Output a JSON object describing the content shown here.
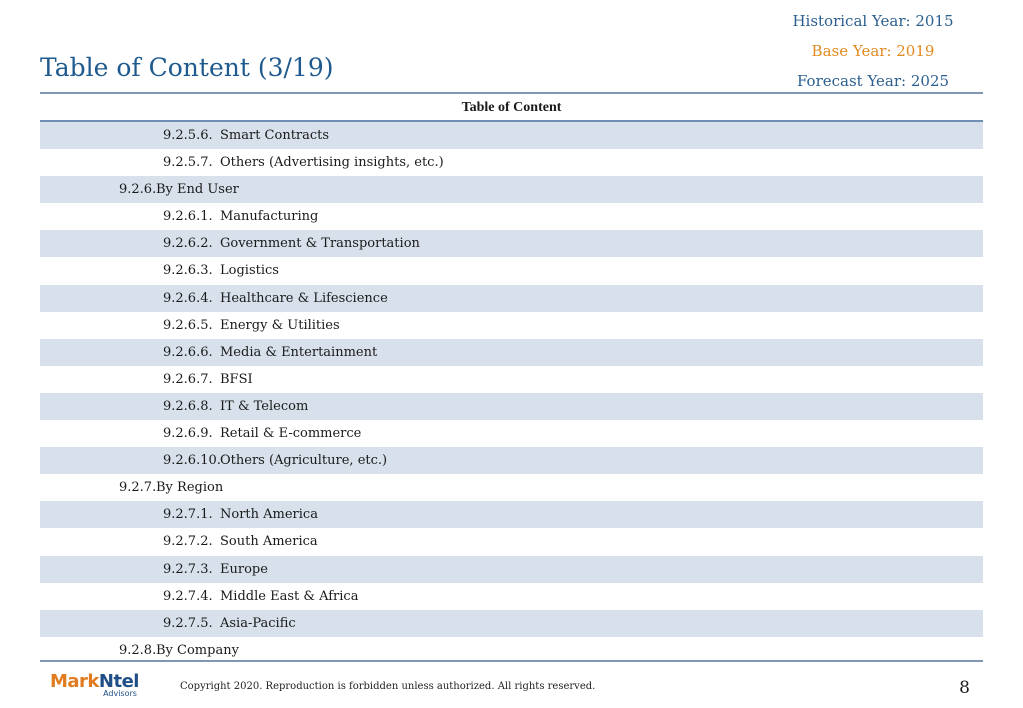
{
  "header": {
    "title": "Table of Content (3/19)",
    "historical_year": "Historical Year: 2015",
    "base_year": "Base Year: 2019",
    "forecast_year": "Forecast Year: 2025"
  },
  "table": {
    "heading": "Table of Content",
    "rows": [
      {
        "num": "9.2.5.6.",
        "label": "Smart Contracts",
        "level": 3
      },
      {
        "num": "9.2.5.7.",
        "label": "Others (Advertising insights, etc.)",
        "level": 3
      },
      {
        "num": "9.2.6.",
        "label": "By End User",
        "level": 2
      },
      {
        "num": "9.2.6.1.",
        "label": "Manufacturing",
        "level": 3
      },
      {
        "num": "9.2.6.2.",
        "label": "Government & Transportation",
        "level": 3
      },
      {
        "num": "9.2.6.3.",
        "label": "Logistics",
        "level": 3
      },
      {
        "num": "9.2.6.4.",
        "label": "Healthcare & Lifescience",
        "level": 3
      },
      {
        "num": "9.2.6.5.",
        "label": "Energy & Utilities",
        "level": 3
      },
      {
        "num": "9.2.6.6.",
        "label": "Media & Entertainment",
        "level": 3
      },
      {
        "num": "9.2.6.7.",
        "label": "BFSI",
        "level": 3
      },
      {
        "num": "9.2.6.8.",
        "label": "IT & Telecom",
        "level": 3
      },
      {
        "num": "9.2.6.9.",
        "label": "Retail & E-commerce",
        "level": 3
      },
      {
        "num": "9.2.6.10.",
        "label": "Others (Agriculture, etc.)",
        "level": 3
      },
      {
        "num": "9.2.7.",
        "label": "By Region",
        "level": 2
      },
      {
        "num": "9.2.7.1.",
        "label": "North America",
        "level": 3
      },
      {
        "num": "9.2.7.2.",
        "label": "South America",
        "level": 3
      },
      {
        "num": "9.2.7.3.",
        "label": "Europe",
        "level": 3
      },
      {
        "num": "9.2.7.4.",
        "label": "Middle East & Africa",
        "level": 3
      },
      {
        "num": "9.2.7.5.",
        "label": "Asia-Pacific",
        "level": 3
      },
      {
        "num": "9.2.8.",
        "label": "By Company",
        "level": 2
      }
    ]
  },
  "footer": {
    "logo_mark": "Mark",
    "logo_ntel": "Ntel",
    "logo_sub": "Advisors",
    "copyright": "Copyright 2020. Reproduction is forbidden unless authorized. All rights reserved.",
    "page_number": "8"
  }
}
